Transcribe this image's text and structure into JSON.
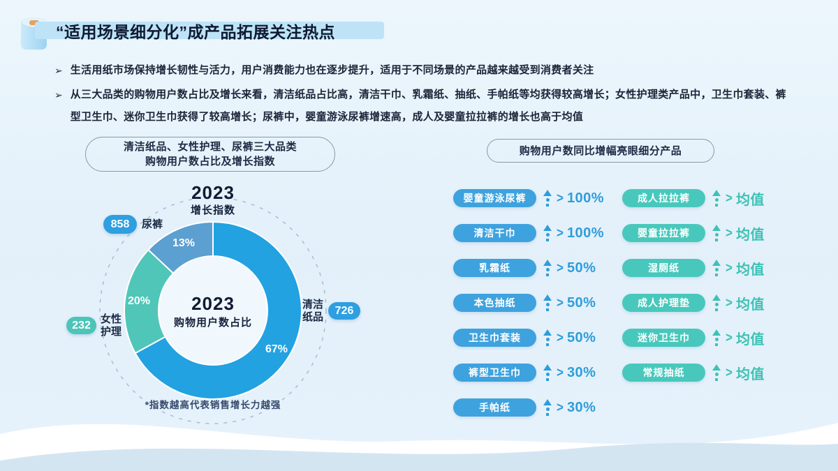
{
  "header": {
    "title": "“适用场景细分化”成产品拓展关注热点",
    "icon": "paper-roll-icon"
  },
  "bullets": [
    "生活用纸市场保持增长韧性与活力，用户消费能力也在逐步提升，适用于不同场景的产品越来越受到消费者关注",
    "从三大品类的购物用户数占比及增长来看，清洁纸品占比高，清洁干巾、乳霜纸、抽纸、手帕纸等均获得较高增长；女性护理类产品中，卫生巾套装、裤型卫生巾、迷你卫生巾获得了较高增长；尿裤中，婴童游泳尿裤增速高，成人及婴童拉拉裤的增长也高于均值"
  ],
  "left_panel": {
    "title_line1": "清洁纸品、女性护理、尿裤三大品类",
    "title_line2": "购物用户数占比及增长指数",
    "top_year": "2023",
    "top_label": "增长指数",
    "center_year": "2023",
    "center_label": "购物用户数占比",
    "footnote": "*指数越高代表销售增长力越强"
  },
  "chart_data": {
    "type": "pie",
    "title": "清洁纸品、女性护理、尿裤三大品类购物用户数占比及增长指数",
    "center_label": "2023 购物用户数占比",
    "outer_label": "2023 增长指数",
    "legend_position": "around",
    "segments": [
      {
        "name": "清洁纸品",
        "share_pct": 67,
        "share_label": "67%",
        "growth_index": 726,
        "color": "#22A2E1"
      },
      {
        "name": "女性护理",
        "share_pct": 20,
        "share_label": "20%",
        "growth_index": 232,
        "color": "#4FC6B8"
      },
      {
        "name": "尿裤",
        "share_pct": 13,
        "share_label": "13%",
        "growth_index": 858,
        "color": "#5C9FD1"
      }
    ],
    "footnote": "*指数越高代表销售增长力越强"
  },
  "right_panel": {
    "title": "购物用户数同比增幅亮眼细分产品",
    "comparator": ">",
    "col_left": [
      {
        "label": "婴童游泳尿裤",
        "value": "100%"
      },
      {
        "label": "清洁干巾",
        "value": "100%"
      },
      {
        "label": "乳霜纸",
        "value": "50%"
      },
      {
        "label": "本色抽纸",
        "value": "50%"
      },
      {
        "label": "卫生巾套装",
        "value": "50%"
      },
      {
        "label": "裤型卫生巾",
        "value": "30%"
      },
      {
        "label": "手帕纸",
        "value": "30%"
      }
    ],
    "col_right": [
      {
        "label": "成人拉拉裤",
        "value": "均值"
      },
      {
        "label": "婴童拉拉裤",
        "value": "均值"
      },
      {
        "label": "湿厕纸",
        "value": "均值"
      },
      {
        "label": "成人护理垫",
        "value": "均值"
      },
      {
        "label": "迷你卫生巾",
        "value": "均值"
      },
      {
        "label": "常规抽纸",
        "value": "均值"
      }
    ]
  },
  "colors": {
    "accent_blue": "#2E9FDE",
    "accent_teal": "#48C8BC",
    "donut_clean_blue": "#22A2E1",
    "donut_fem_teal": "#4FC6B8",
    "donut_diaper_blue": "#5C9FD1",
    "dark_text": "#16223B",
    "background": "#E4F0FA"
  }
}
